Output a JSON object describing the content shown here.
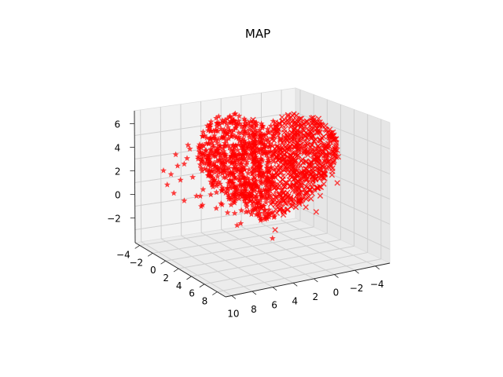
{
  "chart_data": {
    "type": "scatter",
    "projection": "3d",
    "title": "MAP",
    "xlabel": "",
    "ylabel": "",
    "zlabel": "",
    "xlim": [
      -5,
      10
    ],
    "ylim": [
      -4.5,
      9
    ],
    "zlim": [
      -4,
      7
    ],
    "xticks": [
      "10",
      "8",
      "6",
      "4",
      "2",
      "0",
      "−2",
      "−4"
    ],
    "yticks": [
      "−4",
      "−2",
      "0",
      "2",
      "4",
      "6",
      "8"
    ],
    "zticks": [
      "6",
      "4",
      "2",
      "0",
      "−2"
    ],
    "grid": true,
    "marker_symbols": [
      "x",
      "*"
    ],
    "color": "#ff0000",
    "series": [
      {
        "marker": "x",
        "points_x_y_z": [
          [
            3.4,
            2.0,
            5.8
          ],
          [
            2.8,
            1.4,
            5.3
          ],
          [
            2.2,
            0.9,
            4.8
          ],
          [
            4.0,
            2.6,
            5.5
          ],
          [
            4.6,
            3.1,
            4.9
          ],
          [
            1.7,
            0.4,
            4.2
          ],
          [
            1.2,
            -0.1,
            3.5
          ],
          [
            5.1,
            3.6,
            4.1
          ],
          [
            5.5,
            4.0,
            3.3
          ],
          [
            0.9,
            -0.5,
            2.7
          ],
          [
            0.7,
            -0.8,
            1.9
          ],
          [
            5.7,
            4.3,
            2.4
          ],
          [
            5.8,
            4.4,
            1.5
          ],
          [
            0.8,
            -0.7,
            1.0
          ],
          [
            1.1,
            -0.3,
            0.2
          ],
          [
            5.6,
            4.1,
            0.6
          ],
          [
            5.2,
            3.8,
            -0.3
          ],
          [
            1.6,
            0.2,
            -0.6
          ],
          [
            2.2,
            0.8,
            -1.3
          ],
          [
            4.7,
            3.3,
            -1.1
          ],
          [
            4.1,
            2.8,
            -1.8
          ],
          [
            2.9,
            1.5,
            -2.0
          ],
          [
            3.5,
            2.1,
            -2.4
          ],
          [
            3.0,
            1.7,
            1.5
          ],
          [
            3.8,
            2.4,
            2.2
          ],
          [
            2.5,
            1.1,
            2.6
          ],
          [
            4.3,
            2.9,
            0.9
          ],
          [
            1.9,
            0.6,
            1.7
          ],
          [
            3.2,
            1.8,
            3.6
          ],
          [
            4.9,
            3.4,
            2.9
          ],
          [
            2.6,
            1.2,
            -0.4
          ],
          [
            3.6,
            2.3,
            0.1
          ],
          [
            1.4,
            0.0,
            2.2
          ],
          [
            4.5,
            3.0,
            3.8
          ],
          [
            2.0,
            0.7,
            3.1
          ],
          [
            3.9,
            2.5,
            4.4
          ],
          [
            5.3,
            3.9,
            1.1
          ],
          [
            1.0,
            -0.4,
            3.9
          ],
          [
            4.2,
            2.7,
            -0.7
          ],
          [
            2.7,
            1.3,
            0.7
          ],
          [
            3.3,
            1.9,
            -1.0
          ],
          [
            5.0,
            3.5,
            5.0
          ],
          [
            6.0,
            4.6,
            3.0
          ],
          [
            6.2,
            4.8,
            2.0
          ],
          [
            3.7,
            2.2,
            6.3
          ],
          [
            2.4,
            1.0,
            5.9
          ],
          [
            6.1,
            4.7,
            4.6
          ]
        ]
      },
      {
        "marker": "*",
        "points_x_y_z": [
          [
            4.2,
            -1.5,
            3.4
          ],
          [
            5.0,
            -2.2,
            2.9
          ],
          [
            5.8,
            -2.7,
            2.2
          ],
          [
            3.6,
            -0.9,
            3.8
          ],
          [
            6.4,
            -3.1,
            1.4
          ],
          [
            6.8,
            -3.4,
            0.5
          ],
          [
            3.0,
            -0.4,
            2.4
          ],
          [
            7.0,
            -3.6,
            -0.6
          ],
          [
            6.6,
            -3.3,
            -1.5
          ],
          [
            2.6,
            0.1,
            1.2
          ],
          [
            2.4,
            0.3,
            0.1
          ],
          [
            5.9,
            -2.9,
            -2.3
          ],
          [
            4.9,
            -2.1,
            -2.9
          ],
          [
            2.8,
            0.0,
            -1.2
          ],
          [
            3.9,
            -1.0,
            -2.6
          ],
          [
            4.6,
            -1.8,
            1.0
          ],
          [
            5.4,
            -2.5,
            0.2
          ],
          [
            3.4,
            -0.6,
            -0.3
          ],
          [
            4.8,
            -2.0,
            -1.1
          ],
          [
            5.6,
            -2.6,
            3.2
          ],
          [
            4.0,
            -1.2,
            2.7
          ],
          [
            6.2,
            -3.0,
            -0.1
          ],
          [
            3.8,
            -1.1,
            0.8
          ],
          [
            5.2,
            -2.3,
            -1.8
          ],
          [
            4.4,
            -1.6,
            0.4
          ],
          [
            6.0,
            -2.8,
            1.6
          ],
          [
            3.2,
            -0.5,
            1.8
          ],
          [
            7.2,
            -3.8,
            0.9
          ],
          [
            4.1,
            -1.3,
            -3.1
          ],
          [
            2.5,
            0.2,
            2.9
          ],
          [
            5.7,
            -2.7,
            3.6
          ],
          [
            6.5,
            -3.2,
            2.6
          ]
        ]
      }
    ]
  }
}
